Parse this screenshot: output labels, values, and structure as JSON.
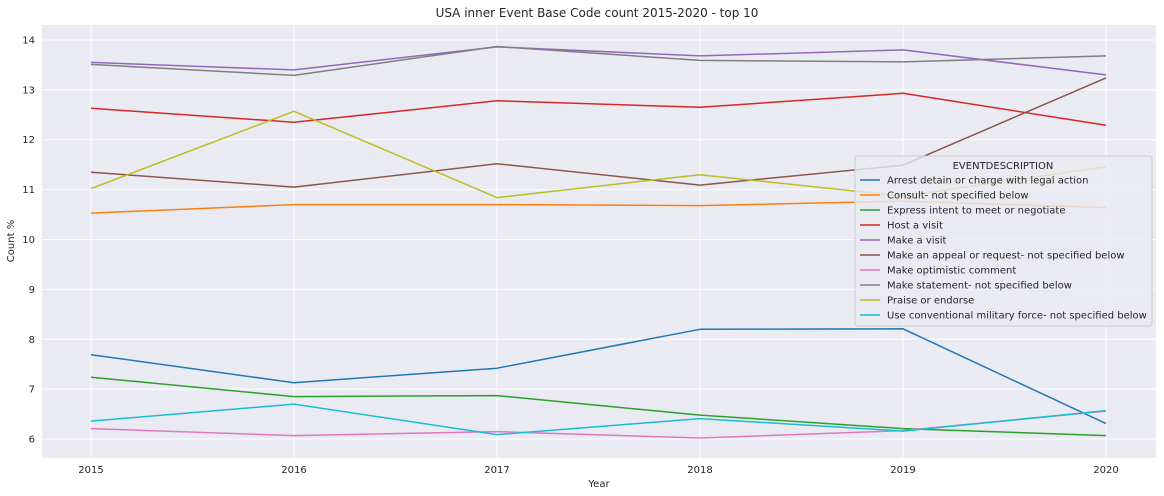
{
  "chart_data": {
    "type": "line",
    "title": "USA inner Event Base Code count 2015-2020 - top 10",
    "xlabel": "Year",
    "ylabel": "Count %",
    "x": [
      "2015",
      "2016",
      "2017",
      "2018",
      "2019",
      "2020"
    ],
    "y_ticks": [
      "6",
      "7",
      "8",
      "9",
      "10",
      "11",
      "12",
      "13",
      "14"
    ],
    "ylim": [
      5.62,
      14.3
    ],
    "grid": true,
    "legend": {
      "title": "EVENTDESCRIPTION",
      "position": "center-right"
    },
    "series": [
      {
        "name": "Arrest detain or charge with legal action",
        "color": "#1f77b4",
        "values": [
          7.69,
          7.13,
          7.42,
          8.2,
          8.21,
          6.31
        ]
      },
      {
        "name": "Consult- not specified below",
        "color": "#ff7f0e",
        "values": [
          10.53,
          10.7,
          10.7,
          10.68,
          10.77,
          10.64
        ]
      },
      {
        "name": "Express intent to meet or negotiate",
        "color": "#2ca02c",
        "values": [
          7.24,
          6.85,
          6.87,
          6.48,
          6.21,
          6.07
        ]
      },
      {
        "name": "Host a visit",
        "color": "#d62728",
        "values": [
          12.63,
          12.35,
          12.78,
          12.65,
          12.93,
          12.29
        ]
      },
      {
        "name": "Make a visit",
        "color": "#9467bd",
        "values": [
          13.55,
          13.4,
          13.86,
          13.68,
          13.8,
          13.3
        ]
      },
      {
        "name": "Make an appeal or request- not specified below",
        "color": "#8c564b",
        "values": [
          11.35,
          11.05,
          11.52,
          11.09,
          11.49,
          13.24
        ]
      },
      {
        "name": "Make optimistic comment",
        "color": "#e377c2",
        "values": [
          6.21,
          6.07,
          6.15,
          6.02,
          6.17,
          6.56
        ]
      },
      {
        "name": "Make statement- not specified below",
        "color": "#7f7f7f",
        "values": [
          13.51,
          13.29,
          13.87,
          13.59,
          13.56,
          13.68
        ]
      },
      {
        "name": "Praise or endorse",
        "color": "#bcbd22",
        "values": [
          11.02,
          12.57,
          10.84,
          11.3,
          10.87,
          11.46
        ]
      },
      {
        "name": "Use conventional military force- not specified below",
        "color": "#17becf",
        "values": [
          6.36,
          6.7,
          6.09,
          6.41,
          6.16,
          6.57
        ]
      }
    ]
  }
}
